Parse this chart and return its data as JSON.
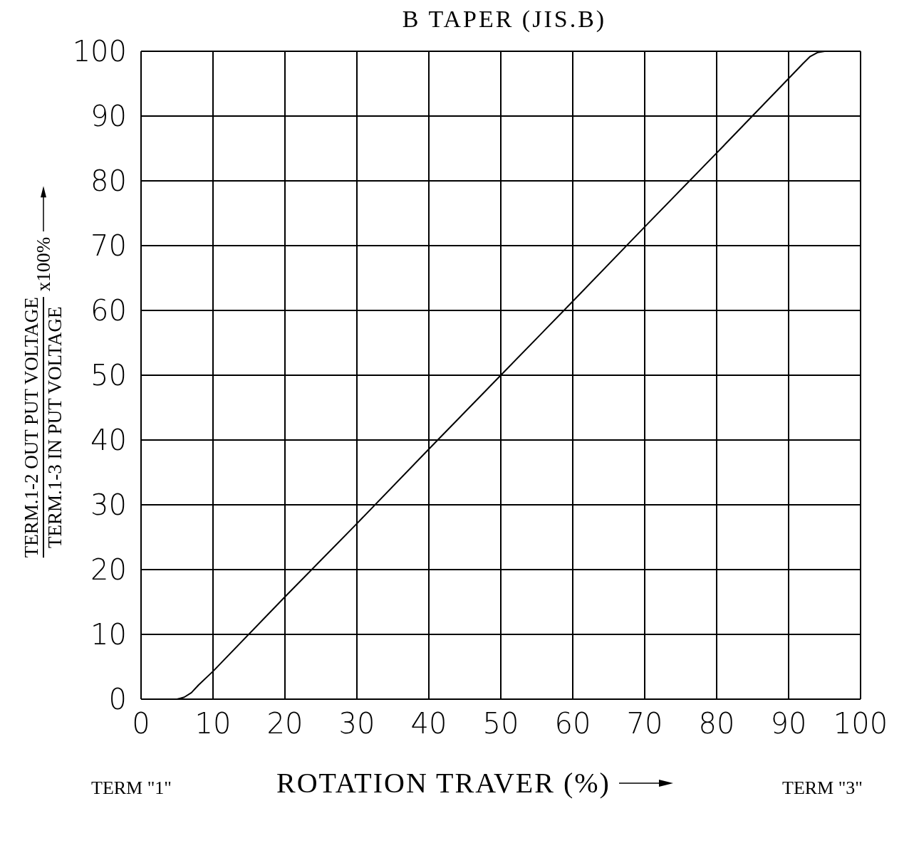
{
  "chart_data": {
    "type": "line",
    "title": "B TAPER (JIS.B)",
    "xlabel": "ROTATION TRAVER (%)",
    "ylabel": "TERM.1-2 OUT PUT VOLTAGE",
    "annotations": [
      "TERM \"1\"",
      "TERM \"3\"",
      "TERM.1-3 IN PUT VOLTAGE",
      "x100%"
    ],
    "x": [
      5,
      6,
      7,
      8,
      10,
      20,
      30,
      40,
      50,
      60,
      70,
      80,
      90,
      92,
      93,
      94,
      95
    ],
    "series": [
      {
        "color": "#000000",
        "values": [
          0,
          0.3,
          1,
          2.2,
          4.3,
          15.8,
          27.1,
          38.6,
          50,
          61.4,
          72.9,
          84.3,
          95.8,
          98.1,
          99.2,
          99.8,
          100
        ]
      }
    ],
    "xlim": [
      0,
      100
    ],
    "xticks": [
      0,
      10,
      20,
      30,
      40,
      50,
      60,
      70,
      80,
      90,
      100
    ],
    "ylim": [
      0,
      100
    ],
    "yticks": [
      0,
      10,
      20,
      30,
      40,
      50,
      60,
      70,
      80,
      90,
      100
    ],
    "grid": true,
    "marker": "none",
    "line_style": "solid"
  }
}
